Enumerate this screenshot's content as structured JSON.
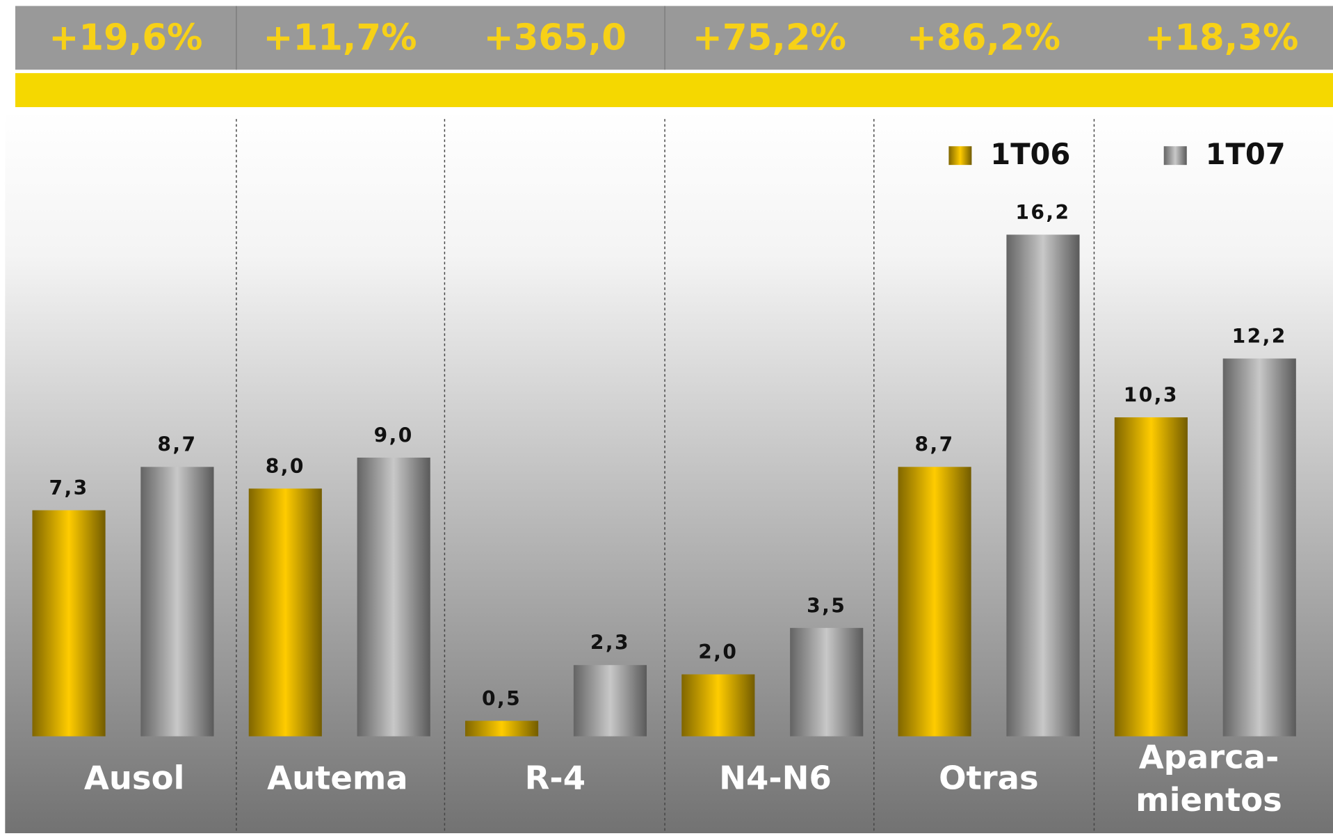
{
  "chart_data": {
    "type": "bar",
    "changes": [
      "+19,6%",
      "+11,7%",
      "+365,0",
      "+75,2%",
      "+86,2%",
      "+18,3%"
    ],
    "categories": [
      "Ausol",
      "Autema",
      "R-4",
      "N4-N6",
      "Otras",
      "Aparca-\nmientos"
    ],
    "series": [
      {
        "name": "1T06",
        "color": "#ffcc00",
        "values": [
          7.3,
          8.0,
          0.5,
          2.0,
          8.7,
          10.3
        ],
        "value_labels": [
          "7,3",
          "8,0",
          "0,5",
          "2,0",
          "8,7",
          "10,3"
        ]
      },
      {
        "name": "1T07",
        "color": "#c8c8c8",
        "values": [
          8.7,
          9.0,
          2.3,
          3.5,
          16.2,
          12.2
        ],
        "value_labels": [
          "8,7",
          "9,0",
          "2,3",
          "3,5",
          "16,2",
          "12,2"
        ]
      }
    ],
    "legend": "top-right"
  }
}
